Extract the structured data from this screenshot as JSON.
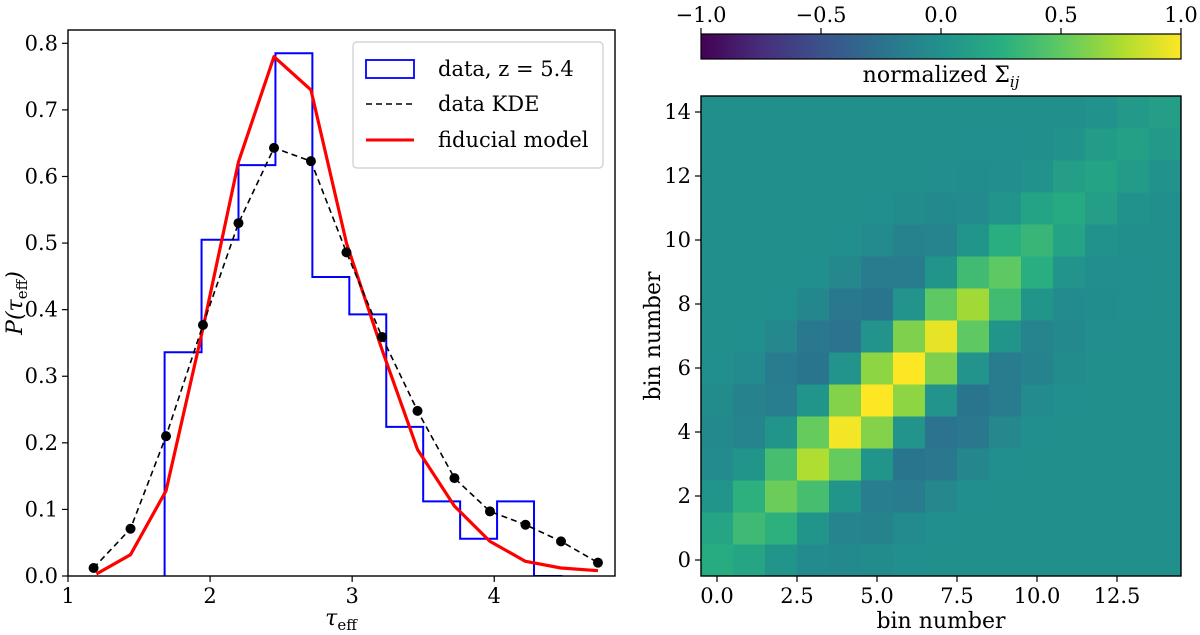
{
  "chart_data": [
    {
      "type": "line",
      "title": "",
      "xlabel": "τ_eff",
      "ylabel": "P(τ_eff)",
      "xlim": [
        1.0,
        4.85
      ],
      "ylim": [
        0.0,
        0.82
      ],
      "xticks": [
        1,
        2,
        3,
        4
      ],
      "yticks": [
        0.0,
        0.1,
        0.2,
        0.3,
        0.4,
        0.5,
        0.6,
        0.7,
        0.8
      ],
      "tick_labels_x": [
        "1",
        "2",
        "3",
        "4"
      ],
      "tick_labels_y": [
        "0.0",
        "0.1",
        "0.2",
        "0.3",
        "0.4",
        "0.5",
        "0.6",
        "0.7",
        "0.8"
      ],
      "legend_position": "top-right",
      "series": [
        {
          "name": "data, z = 5.4",
          "kind": "step-histogram",
          "color": "#0000ff",
          "bin_edges": [
            1.68,
            1.94,
            2.2,
            2.46,
            2.72,
            2.98,
            3.24,
            3.5,
            3.76,
            4.02,
            4.28,
            4.48
          ],
          "values": [
            0.336,
            0.505,
            0.617,
            0.785,
            0.449,
            0.393,
            0.224,
            0.112,
            0.056,
            0.112,
            0.0
          ]
        },
        {
          "name": "data KDE",
          "kind": "dashed-line-markers",
          "color": "#000000",
          "x": [
            1.18,
            1.44,
            1.69,
            1.95,
            2.2,
            2.45,
            2.71,
            2.96,
            3.21,
            3.46,
            3.72,
            3.97,
            4.22,
            4.47,
            4.73
          ],
          "y": [
            0.012,
            0.071,
            0.21,
            0.377,
            0.53,
            0.643,
            0.623,
            0.486,
            0.359,
            0.248,
            0.147,
            0.097,
            0.077,
            0.052,
            0.02
          ]
        },
        {
          "name": "fiducial model",
          "kind": "line",
          "color": "#ff0000",
          "x": [
            1.2,
            1.44,
            1.69,
            1.95,
            2.2,
            2.45,
            2.71,
            2.96,
            3.21,
            3.46,
            3.72,
            3.97,
            4.22,
            4.47,
            4.73
          ],
          "y": [
            0.003,
            0.032,
            0.128,
            0.372,
            0.622,
            0.78,
            0.73,
            0.5,
            0.34,
            0.19,
            0.105,
            0.052,
            0.022,
            0.012,
            0.008
          ]
        }
      ]
    },
    {
      "type": "heatmap",
      "title": "",
      "xlabel": "bin number",
      "ylabel": "bin number",
      "xlim": [
        -0.5,
        14.5
      ],
      "ylim": [
        -0.5,
        14.5
      ],
      "xticks": [
        0.0,
        2.5,
        5.0,
        7.5,
        10.0,
        12.5
      ],
      "yticks": [
        0,
        2,
        4,
        6,
        8,
        10,
        12,
        14
      ],
      "tick_labels_x": [
        "0.0",
        "2.5",
        "5.0",
        "7.5",
        "10.0",
        "12.5"
      ],
      "tick_labels_y": [
        "0",
        "2",
        "4",
        "6",
        "8",
        "10",
        "12",
        "14"
      ],
      "colormap": "viridis",
      "colorbar": {
        "label": "normalized Σ_ij",
        "range": [
          -1.0,
          1.0
        ],
        "ticks": [
          -1.0,
          -0.5,
          0.0,
          0.5,
          1.0
        ],
        "tick_labels": [
          "−1.0",
          "−0.5",
          "0.0",
          "0.5",
          "1.0"
        ],
        "position": "top"
      },
      "notes": "values approximated: Gaussian band along diagonal (peak ~0.99 near bins 5-6) with negative off-diagonal regions (~-0.2 to -0.25)"
    }
  ]
}
